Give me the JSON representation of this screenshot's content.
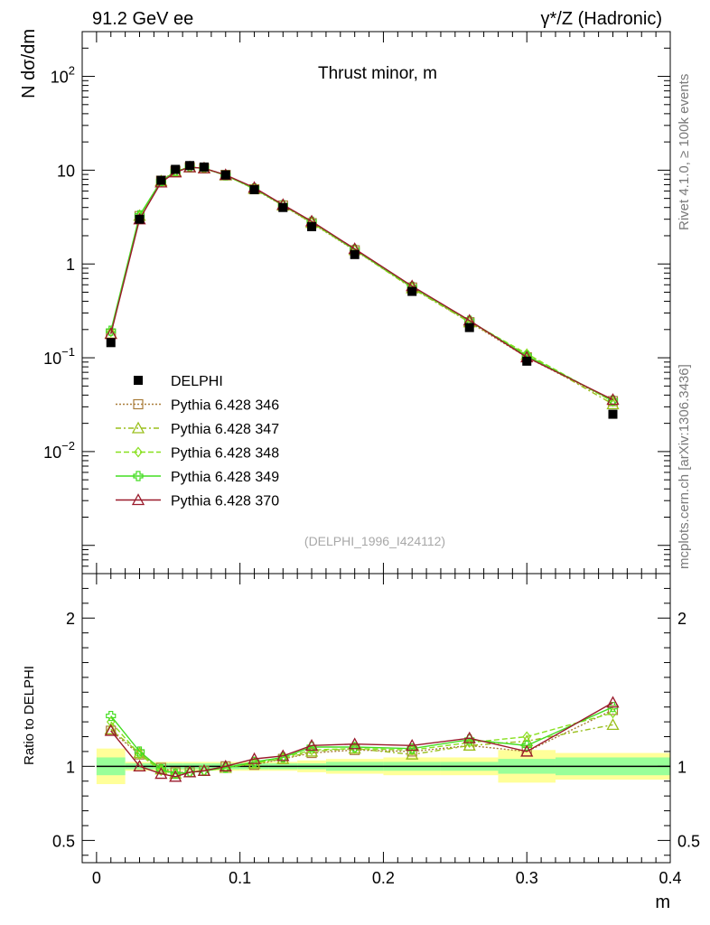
{
  "header": {
    "left": "91.2 GeV ee",
    "right": "γ*/Z (Hadronic)"
  },
  "side_labels": {
    "rivet": "Rivet 4.1.0, ≥ 100k events",
    "mcplots": "mcplots.cern.ch [arXiv:1306.3436]"
  },
  "chart_data": {
    "type": "line",
    "title": "Thrust minor, m",
    "analysis_label": "(DELPHI_1996_I424112)",
    "xlabel": "m",
    "ylabel_main": "N  dσ/dm",
    "ylabel_ratio": "Ratio to DELPHI",
    "xlim": [
      -0.01,
      0.4
    ],
    "ylim_main": [
      0.0005,
      300
    ],
    "ylim_ratio": [
      0.35,
      2.3
    ],
    "yscale_main": "log",
    "x_ticks": [
      "0",
      "0.1",
      "0.2",
      "0.3",
      "0.4"
    ],
    "y_ticks_main": [
      "10^-2",
      "10^-1",
      "1",
      "10",
      "10^2"
    ],
    "y_ticks_ratio": [
      "0.5",
      "1",
      "2"
    ],
    "legend_position": "lower-left",
    "x": [
      0.01,
      0.03,
      0.045,
      0.055,
      0.065,
      0.075,
      0.09,
      0.11,
      0.13,
      0.15,
      0.18,
      0.22,
      0.26,
      0.3,
      0.36
    ],
    "bin_edges": [
      0.0,
      0.02,
      0.04,
      0.05,
      0.06,
      0.07,
      0.08,
      0.1,
      0.12,
      0.14,
      0.16,
      0.2,
      0.24,
      0.28,
      0.32,
      0.4
    ],
    "data": {
      "name": "DELPHI",
      "values": [
        0.145,
        3.0,
        7.8,
        10.2,
        11.2,
        10.8,
        8.9,
        6.2,
        4.0,
        2.5,
        1.26,
        0.51,
        0.21,
        0.092,
        0.025
      ]
    },
    "ratio_band_inner": [
      0.06,
      0.02,
      0.02,
      0.02,
      0.02,
      0.02,
      0.02,
      0.02,
      0.02,
      0.02,
      0.03,
      0.03,
      0.03,
      0.05,
      0.06
    ],
    "ratio_band_outer": [
      0.12,
      0.03,
      0.03,
      0.03,
      0.03,
      0.03,
      0.03,
      0.03,
      0.03,
      0.04,
      0.05,
      0.06,
      0.06,
      0.11,
      0.09
    ],
    "series": [
      {
        "name": "Pythia 6.428 346",
        "color": "#a97c39",
        "dash": "2,2",
        "marker": "square",
        "ratio": [
          1.24,
          1.08,
          0.99,
          0.96,
          0.96,
          0.97,
          1.0,
          1.01,
          1.05,
          1.09,
          1.11,
          1.1,
          1.14,
          1.1,
          1.38
        ]
      },
      {
        "name": "Pythia 6.428 347",
        "color": "#9abf1c",
        "dash": "6,3,2,3",
        "marker": "triangle",
        "ratio": [
          1.25,
          1.09,
          0.98,
          0.95,
          0.96,
          0.97,
          0.99,
          1.02,
          1.05,
          1.1,
          1.12,
          1.08,
          1.14,
          1.17,
          1.28
        ]
      },
      {
        "name": "Pythia 6.428 348",
        "color": "#88e01e",
        "dash": "6,3",
        "marker": "diamond",
        "ratio": [
          1.3,
          1.08,
          0.97,
          0.95,
          0.96,
          0.97,
          0.99,
          1.02,
          1.06,
          1.11,
          1.12,
          1.11,
          1.16,
          1.2,
          1.36
        ]
      },
      {
        "name": "Pythia 6.428 349",
        "color": "#44dd22",
        "dash": "",
        "marker": "cross",
        "ratio": [
          1.34,
          1.1,
          0.98,
          0.95,
          0.96,
          0.97,
          0.99,
          1.03,
          1.06,
          1.13,
          1.13,
          1.12,
          1.18,
          1.14,
          1.4
        ]
      },
      {
        "name": "Pythia 6.428 370",
        "color": "#9a1a2b",
        "dash": "",
        "marker": "triangle",
        "ratio": [
          1.24,
          1.0,
          0.95,
          0.93,
          0.96,
          0.97,
          1.0,
          1.05,
          1.07,
          1.14,
          1.15,
          1.14,
          1.19,
          1.1,
          1.43
        ]
      }
    ]
  }
}
